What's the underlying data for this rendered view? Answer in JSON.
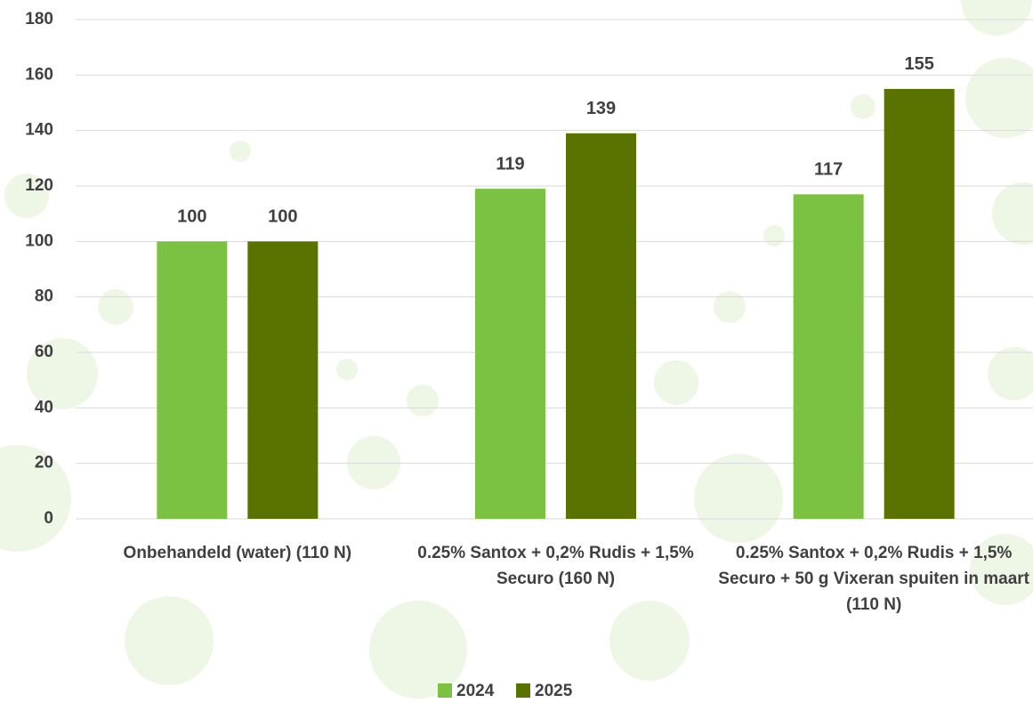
{
  "chart_data": {
    "type": "bar",
    "categories": [
      "Onbehandeld (water) (110 N)",
      "0.25% Santox + 0,2% Rudis + 1,5% Securo (160 N)",
      "0.25% Santox + 0,2% Rudis + 1,5% Securo + 50 g Vixeran spuiten in maart (110 N)"
    ],
    "series": [
      {
        "name": "2024",
        "color": "#7cc242",
        "values": [
          100,
          119,
          117
        ]
      },
      {
        "name": "2025",
        "color": "#5a7300",
        "values": [
          100,
          139,
          155
        ]
      }
    ],
    "ylim": [
      0,
      180
    ],
    "yticks": [
      0,
      20,
      40,
      60,
      80,
      100,
      120,
      140,
      160,
      180
    ],
    "grid": true,
    "legend": "bottom"
  }
}
